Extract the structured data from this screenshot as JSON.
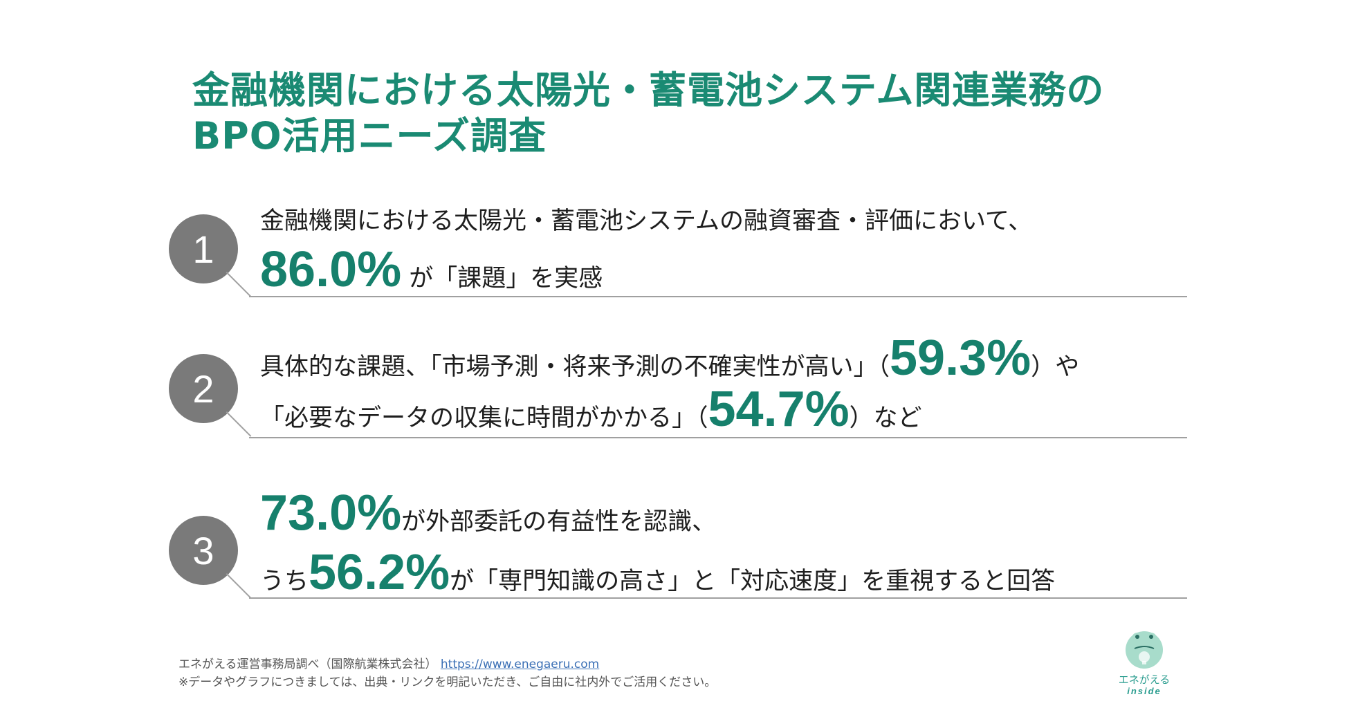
{
  "title": {
    "line1": "金融機関における太陽光・蓄電池システム関連業務の",
    "line2": "BPO活用ニーズ調査"
  },
  "items": [
    {
      "number": "1",
      "line1": "金融機関における太陽光・蓄電池システムの融資審査・評価において、",
      "line2_big": "86.0%",
      "line2_text": " が「課題」を実感"
    },
    {
      "number": "2",
      "line1_text": "具体的な課題、「市場予測・将来予測の不確実性が高い」（",
      "line1_big": "59.3%",
      "line1_tail": "）や",
      "line2_text": "「必要なデータの収集に時間がかかる」（",
      "line2_big": "54.7%",
      "line2_tail": "）など"
    },
    {
      "number": "3",
      "line1_big": "73.0%",
      "line1_text": "が外部委託の有益性を認識、",
      "line2_pre": "うち",
      "line2_big": "56.2%",
      "line2_text": "が「専門知識の高さ」と「対応速度」を重視すると回答"
    }
  ],
  "footer": {
    "source": "エネがえる運営事務局調べ（国際航業株式会社）",
    "link": "https://www.enegaeru.com",
    "note": "※データやグラフにつきましては、出典・リンクを明記いただき、ご自由に社内外でご活用ください。"
  },
  "logo": {
    "label": "エネがえる",
    "sub": "inside"
  },
  "colors": {
    "accent": "#1a8a73",
    "circle": "#7a7a7a",
    "rule": "#a0a0a0"
  }
}
